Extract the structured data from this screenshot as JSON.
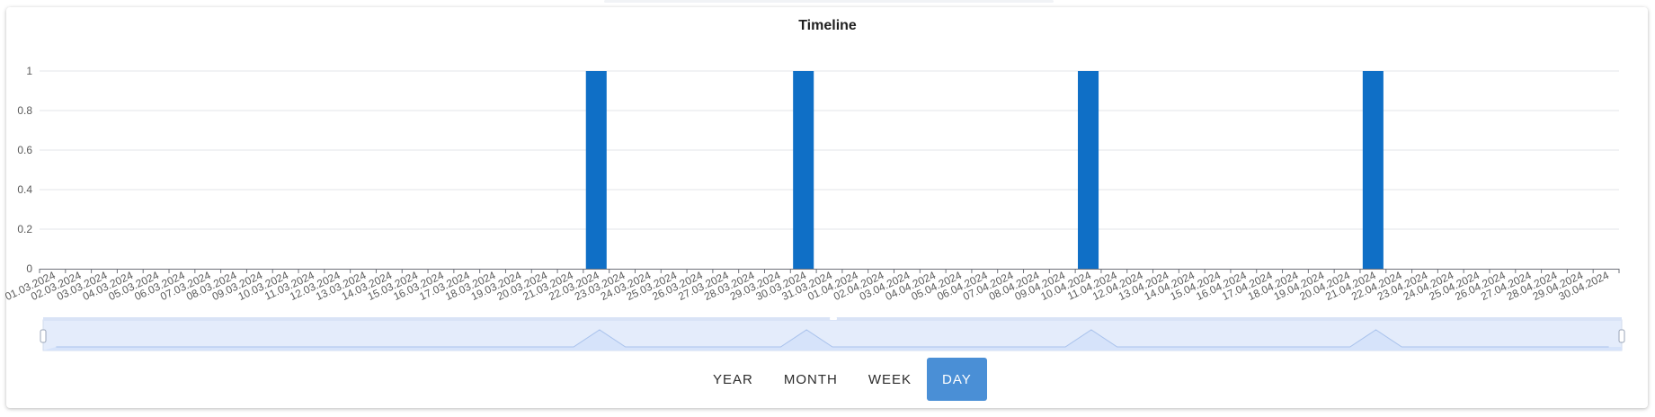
{
  "chart_data": {
    "type": "bar",
    "title": "Timeline",
    "categories": [
      "01.03.2024",
      "02.03.2024",
      "03.03.2024",
      "04.03.2024",
      "05.03.2024",
      "06.03.2024",
      "07.03.2024",
      "08.03.2024",
      "09.03.2024",
      "10.03.2024",
      "11.03.2024",
      "12.03.2024",
      "13.03.2024",
      "14.03.2024",
      "15.03.2024",
      "16.03.2024",
      "17.03.2024",
      "18.03.2024",
      "19.03.2024",
      "20.03.2024",
      "21.03.2024",
      "22.03.2024",
      "23.03.2024",
      "24.03.2024",
      "25.03.2024",
      "26.03.2024",
      "27.03.2024",
      "28.03.2024",
      "29.03.2024",
      "30.03.2024",
      "31.03.2024",
      "01.04.2024",
      "02.04.2024",
      "03.04.2024",
      "04.04.2024",
      "05.04.2024",
      "06.04.2024",
      "07.04.2024",
      "08.04.2024",
      "09.04.2024",
      "10.04.2024",
      "11.04.2024",
      "12.04.2024",
      "13.04.2024",
      "14.04.2024",
      "15.04.2024",
      "16.04.2024",
      "17.04.2024",
      "18.04.2024",
      "19.04.2024",
      "20.04.2024",
      "21.04.2024",
      "22.04.2024",
      "23.04.2024",
      "24.04.2024",
      "25.04.2024",
      "26.04.2024",
      "27.04.2024",
      "28.04.2024",
      "29.04.2024",
      "30.04.2024"
    ],
    "values": [
      0,
      0,
      0,
      0,
      0,
      0,
      0,
      0,
      0,
      0,
      0,
      0,
      0,
      0,
      0,
      0,
      0,
      0,
      0,
      0,
      0,
      1,
      0,
      0,
      0,
      0,
      0,
      0,
      0,
      1,
      0,
      0,
      0,
      0,
      0,
      0,
      0,
      0,
      0,
      0,
      1,
      0,
      0,
      0,
      0,
      0,
      0,
      0,
      0,
      0,
      0,
      1,
      0,
      0,
      0,
      0,
      0,
      0,
      0,
      0,
      0
    ],
    "ylim": [
      0,
      1
    ],
    "yticks": [
      "0",
      "0.2",
      "0.4",
      "0.6",
      "0.8",
      "1"
    ],
    "grid": true,
    "colors": {
      "bar": "#0f6fc6",
      "grid": "#e3e6ea",
      "axis": "#6e7079",
      "tick_label": "#5a5a5a",
      "zoom_fill": "#e4ecfb",
      "zoom_line": "#a9c2ec"
    }
  },
  "period_selector": {
    "options": [
      "YEAR",
      "MONTH",
      "WEEK",
      "DAY"
    ],
    "selected": "DAY"
  }
}
